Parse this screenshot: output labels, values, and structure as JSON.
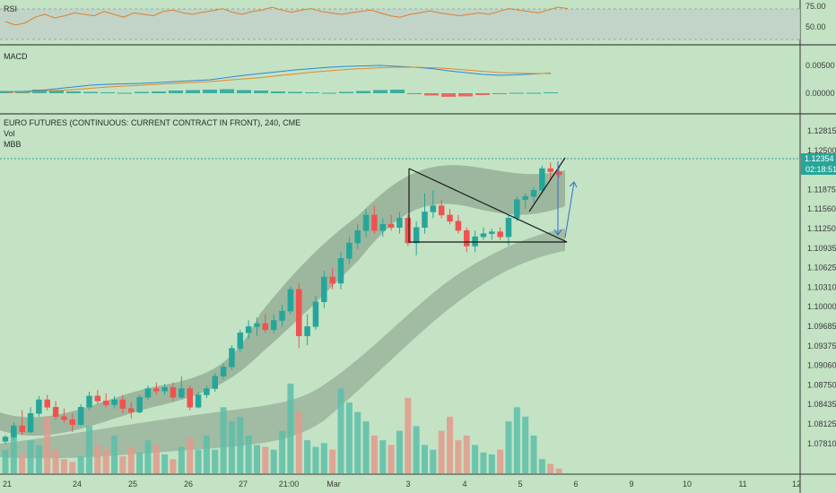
{
  "colors": {
    "background": "#c3e3c4",
    "up": "#26a69a",
    "down": "#ef5350",
    "vol_up": "#5dbea9",
    "vol_down": "#e39a8d",
    "band": "#8fa892",
    "macd_line": "#2f86d8",
    "signal_line": "#e5882a",
    "rsi_line": "#e07d2d",
    "price_line": "#26a69a"
  },
  "panes": {
    "rsi": {
      "label": "RSI",
      "ticks": [
        "75.00",
        "50.00"
      ]
    },
    "macd": {
      "label": "MACD",
      "ticks": [
        "0.00500",
        "0.00000"
      ]
    },
    "main": {
      "title": "EURO FUTURES (CONTINUOUS: CURRENT CONTRACT IN FRONT), 240, CME",
      "indicator_1": "Vol",
      "indicator_2": "MBB"
    }
  },
  "price_axis": {
    "ticks": [
      "1.12815",
      "1.12500",
      "1.12190",
      "1.11875",
      "1.11560",
      "1.11250",
      "1.10935",
      "1.10625",
      "1.10310",
      "1.10000",
      "1.09685",
      "1.09375",
      "1.09060",
      "1.08750",
      "1.08435",
      "1.08125",
      "1.07810"
    ],
    "current_price": "1.12354",
    "countdown": "02:18:51"
  },
  "time_axis": {
    "ticks": [
      "21",
      "24",
      "25",
      "26",
      "27",
      "21:00",
      "Mar",
      "3",
      "4",
      "5",
      "6",
      "9",
      "10",
      "11",
      "12"
    ]
  },
  "chart_data": [
    {
      "type": "candlestick",
      "title": "EURO FUTURES (CONTINUOUS: CURRENT CONTRACT IN FRONT), 240, CME",
      "ylim": [
        1.0765,
        1.13
      ],
      "x_ticks": [
        "21",
        "24",
        "25",
        "26",
        "27",
        "21:00",
        "Mar",
        "3",
        "4",
        "5",
        "6",
        "9",
        "10",
        "11",
        "12"
      ],
      "candles": [
        {
          "o": 1.0805,
          "h": 1.0815,
          "l": 1.08,
          "c": 1.0812
        },
        {
          "o": 1.0812,
          "h": 1.0835,
          "l": 1.0808,
          "c": 1.083
        },
        {
          "o": 1.083,
          "h": 1.0855,
          "l": 1.0815,
          "c": 1.082
        },
        {
          "o": 1.082,
          "h": 1.086,
          "l": 1.0818,
          "c": 1.085
        },
        {
          "o": 1.085,
          "h": 1.0878,
          "l": 1.0845,
          "c": 1.0872
        },
        {
          "o": 1.0872,
          "h": 1.088,
          "l": 1.0855,
          "c": 1.086
        },
        {
          "o": 1.086,
          "h": 1.087,
          "l": 1.084,
          "c": 1.0845
        },
        {
          "o": 1.0845,
          "h": 1.0858,
          "l": 1.0835,
          "c": 1.084
        },
        {
          "o": 1.084,
          "h": 1.085,
          "l": 1.082,
          "c": 1.0832
        },
        {
          "o": 1.0832,
          "h": 1.0865,
          "l": 1.083,
          "c": 1.086
        },
        {
          "o": 1.086,
          "h": 1.0885,
          "l": 1.0855,
          "c": 1.0878
        },
        {
          "o": 1.0878,
          "h": 1.0888,
          "l": 1.0865,
          "c": 1.087
        },
        {
          "o": 1.087,
          "h": 1.0882,
          "l": 1.086,
          "c": 1.0864
        },
        {
          "o": 1.0864,
          "h": 1.0878,
          "l": 1.0858,
          "c": 1.0872
        },
        {
          "o": 1.0872,
          "h": 1.088,
          "l": 1.085,
          "c": 1.0858
        },
        {
          "o": 1.0858,
          "h": 1.0868,
          "l": 1.0842,
          "c": 1.0852
        },
        {
          "o": 1.0852,
          "h": 1.088,
          "l": 1.085,
          "c": 1.0876
        },
        {
          "o": 1.0876,
          "h": 1.0895,
          "l": 1.0872,
          "c": 1.089
        },
        {
          "o": 1.089,
          "h": 1.09,
          "l": 1.088,
          "c": 1.0886
        },
        {
          "o": 1.0886,
          "h": 1.0898,
          "l": 1.088,
          "c": 1.0892
        },
        {
          "o": 1.0892,
          "h": 1.09,
          "l": 1.087,
          "c": 1.0876
        },
        {
          "o": 1.0876,
          "h": 1.091,
          "l": 1.0874,
          "c": 1.089
        },
        {
          "o": 1.089,
          "h": 1.0895,
          "l": 1.0855,
          "c": 1.086
        },
        {
          "o": 1.086,
          "h": 1.0885,
          "l": 1.0858,
          "c": 1.088
        },
        {
          "o": 1.088,
          "h": 1.0895,
          "l": 1.0875,
          "c": 1.089
        },
        {
          "o": 1.089,
          "h": 1.0915,
          "l": 1.0885,
          "c": 1.091
        },
        {
          "o": 1.091,
          "h": 1.093,
          "l": 1.0905,
          "c": 1.0925
        },
        {
          "o": 1.0925,
          "h": 1.096,
          "l": 1.092,
          "c": 1.0955
        },
        {
          "o": 1.0955,
          "h": 1.0985,
          "l": 1.095,
          "c": 1.098
        },
        {
          "o": 1.098,
          "h": 1.1,
          "l": 1.097,
          "c": 1.099
        },
        {
          "o": 1.099,
          "h": 1.1005,
          "l": 1.0975,
          "c": 1.0995
        },
        {
          "o": 1.0995,
          "h": 1.101,
          "l": 1.098,
          "c": 1.0985
        },
        {
          "o": 1.0985,
          "h": 1.101,
          "l": 1.098,
          "c": 1.1
        },
        {
          "o": 1.1,
          "h": 1.1025,
          "l": 1.099,
          "c": 1.1015
        },
        {
          "o": 1.1015,
          "h": 1.1055,
          "l": 1.101,
          "c": 1.105
        },
        {
          "o": 1.105,
          "h": 1.106,
          "l": 1.0955,
          "c": 1.0975
        },
        {
          "o": 1.0975,
          "h": 1.101,
          "l": 1.096,
          "c": 1.099
        },
        {
          "o": 1.099,
          "h": 1.104,
          "l": 1.0985,
          "c": 1.103
        },
        {
          "o": 1.103,
          "h": 1.108,
          "l": 1.102,
          "c": 1.107
        },
        {
          "o": 1.107,
          "h": 1.1085,
          "l": 1.105,
          "c": 1.106
        },
        {
          "o": 1.106,
          "h": 1.111,
          "l": 1.105,
          "c": 1.11
        },
        {
          "o": 1.11,
          "h": 1.1135,
          "l": 1.109,
          "c": 1.1125
        },
        {
          "o": 1.1125,
          "h": 1.1155,
          "l": 1.1115,
          "c": 1.1145
        },
        {
          "o": 1.1145,
          "h": 1.118,
          "l": 1.1135,
          "c": 1.117
        },
        {
          "o": 1.117,
          "h": 1.1185,
          "l": 1.114,
          "c": 1.1145
        },
        {
          "o": 1.1145,
          "h": 1.1165,
          "l": 1.1135,
          "c": 1.1155
        },
        {
          "o": 1.1155,
          "h": 1.117,
          "l": 1.1145,
          "c": 1.115
        },
        {
          "o": 1.115,
          "h": 1.1175,
          "l": 1.114,
          "c": 1.1165
        },
        {
          "o": 1.1165,
          "h": 1.117,
          "l": 1.112,
          "c": 1.1125
        },
        {
          "o": 1.1125,
          "h": 1.116,
          "l": 1.1105,
          "c": 1.115
        },
        {
          "o": 1.115,
          "h": 1.1205,
          "l": 1.114,
          "c": 1.1175
        },
        {
          "o": 1.1175,
          "h": 1.121,
          "l": 1.1165,
          "c": 1.1185
        },
        {
          "o": 1.1185,
          "h": 1.1195,
          "l": 1.1165,
          "c": 1.117
        },
        {
          "o": 1.117,
          "h": 1.118,
          "l": 1.1155,
          "c": 1.116
        },
        {
          "o": 1.116,
          "h": 1.117,
          "l": 1.114,
          "c": 1.1145
        },
        {
          "o": 1.1145,
          "h": 1.115,
          "l": 1.111,
          "c": 1.112
        },
        {
          "o": 1.112,
          "h": 1.1145,
          "l": 1.111,
          "c": 1.1135
        },
        {
          "o": 1.1135,
          "h": 1.115,
          "l": 1.113,
          "c": 1.114
        },
        {
          "o": 1.114,
          "h": 1.1148,
          "l": 1.113,
          "c": 1.1143
        },
        {
          "o": 1.1143,
          "h": 1.115,
          "l": 1.113,
          "c": 1.1135
        },
        {
          "o": 1.1135,
          "h": 1.117,
          "l": 1.112,
          "c": 1.1165
        },
        {
          "o": 1.1165,
          "h": 1.12,
          "l": 1.116,
          "c": 1.1195
        },
        {
          "o": 1.1195,
          "h": 1.1205,
          "l": 1.118,
          "c": 1.12
        },
        {
          "o": 1.12,
          "h": 1.1215,
          "l": 1.119,
          "c": 1.121
        },
        {
          "o": 1.121,
          "h": 1.125,
          "l": 1.1205,
          "c": 1.1245
        },
        {
          "o": 1.1245,
          "h": 1.1255,
          "l": 1.1225,
          "c": 1.124
        },
        {
          "o": 1.124,
          "h": 1.1248,
          "l": 1.123,
          "c": 1.1235
        }
      ],
      "current_price": 1.12354
    },
    {
      "type": "bar",
      "title": "Vol",
      "values": [
        25,
        45,
        20,
        35,
        30,
        60,
        25,
        15,
        12,
        18,
        50,
        30,
        25,
        40,
        18,
        28,
        22,
        35,
        30,
        20,
        15,
        28,
        38,
        25,
        40,
        25,
        70,
        55,
        60,
        40,
        30,
        28,
        25,
        45,
        95,
        65,
        35,
        28,
        32,
        25,
        90,
        75,
        65,
        55,
        40,
        35,
        30,
        45,
        80,
        50,
        30,
        25,
        45,
        60,
        35,
        40,
        30,
        22,
        20,
        25,
        55,
        70,
        60,
        40,
        15,
        10,
        5
      ]
    },
    {
      "type": "line",
      "title": "MACD",
      "ylabel": "",
      "series": [
        {
          "values": [
            0.0003,
            0.0004,
            0.0006,
            0.001,
            0.0014,
            0.0018,
            0.002,
            0.0021,
            0.0022,
            0.0024,
            0.0026,
            0.0028,
            0.003,
            0.0035,
            0.004,
            0.0044,
            0.0048,
            0.0052,
            0.0055,
            0.0058,
            0.006,
            0.0061,
            0.0062,
            0.006,
            0.0058,
            0.0055,
            0.005,
            0.0046,
            0.0042,
            0.004,
            0.0041,
            0.0043,
            0.0045
          ]
        },
        {
          "values": [
            0.0002,
            0.0003,
            0.0004,
            0.0006,
            0.0008,
            0.0011,
            0.0014,
            0.0016,
            0.0018,
            0.002,
            0.0022,
            0.0024,
            0.0026,
            0.0029,
            0.0032,
            0.0035,
            0.0039,
            0.0043,
            0.0047,
            0.005,
            0.0053,
            0.0055,
            0.0057,
            0.0058,
            0.0058,
            0.0057,
            0.0055,
            0.0052,
            0.0049,
            0.0046,
            0.0045,
            0.0044,
            0.0044
          ]
        }
      ],
      "histogram": [
        0.0005,
        0.0005,
        0.0008,
        0.0007,
        0.0004,
        0.0003,
        0.0002,
        0.0001,
        0.0003,
        0.0004,
        0.0006,
        0.0007,
        0.0008,
        0.0009,
        0.0007,
        0.0006,
        0.0004,
        0.0003,
        0.0002,
        0.0001,
        0.0003,
        0.0005,
        0.0007,
        0.0008,
        -0.0002,
        -0.0005,
        -0.0008,
        -0.0007,
        -0.0004,
        -0.0001,
        0.0001,
        0.0001,
        0.0002
      ]
    },
    {
      "type": "line",
      "title": "RSI",
      "ylim": [
        30,
        85
      ],
      "series": [
        {
          "values": [
            60,
            55,
            58,
            66,
            70,
            65,
            68,
            72,
            70,
            68,
            74,
            70,
            66,
            72,
            70,
            68,
            74,
            76,
            72,
            70,
            73,
            75,
            78,
            73,
            70,
            74,
            76,
            80,
            76,
            73,
            76,
            78,
            74,
            72,
            70,
            72,
            74,
            76,
            72,
            68,
            66,
            70,
            72,
            75,
            72,
            70,
            68,
            70,
            72,
            70,
            74,
            78,
            76,
            74,
            72,
            76,
            80,
            78
          ]
        }
      ]
    }
  ]
}
